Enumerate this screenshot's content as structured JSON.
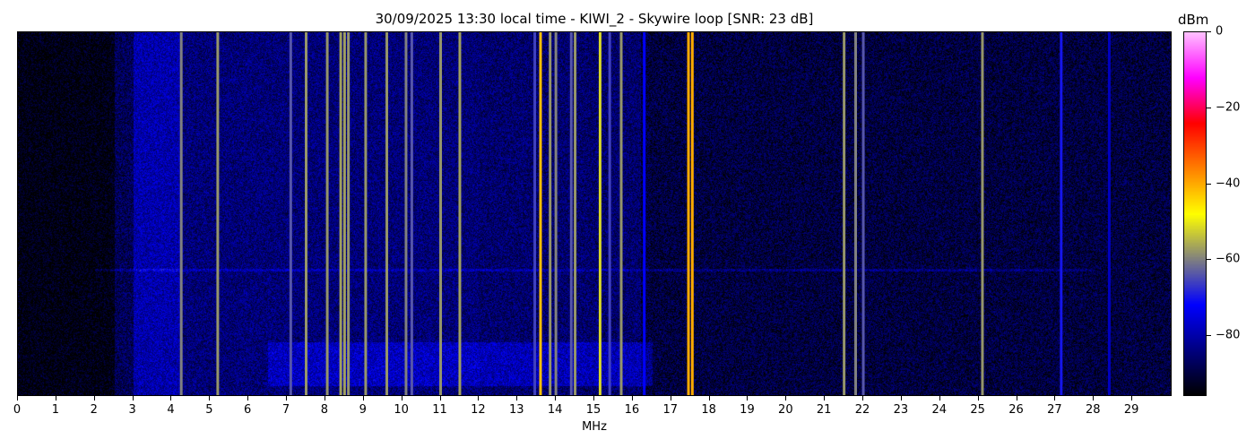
{
  "chart_data": {
    "type": "heatmap",
    "title": "30/09/2025 13:30 local time - KIWI_2 - Skywire loop [SNR: 23 dB]",
    "xlabel": "MHz",
    "xlim": [
      0,
      30
    ],
    "xticks": [
      "0",
      "1",
      "2",
      "3",
      "4",
      "5",
      "6",
      "7",
      "8",
      "9",
      "10",
      "11",
      "12",
      "13",
      "14",
      "15",
      "16",
      "17",
      "18",
      "19",
      "20",
      "21",
      "22",
      "23",
      "24",
      "25",
      "26",
      "27",
      "28",
      "29"
    ],
    "colorbar": {
      "label": "dBm",
      "range": [
        -96,
        0
      ],
      "ticks": [
        0,
        -20,
        -40,
        -60,
        -80
      ],
      "tick_labels": [
        "0",
        "−20",
        "−40",
        "−60",
        "−80"
      ],
      "colormap": [
        "#000000",
        "#000080",
        "#0000ff",
        "#808080",
        "#ffff00",
        "#ff8000",
        "#ff0000",
        "#ff00ff",
        "#ffc0ff"
      ]
    },
    "noise_floor": [
      {
        "from": 0,
        "to": 2.5,
        "dbm": -95
      },
      {
        "from": 2.5,
        "to": 3.0,
        "dbm": -88
      },
      {
        "from": 3.0,
        "to": 4.2,
        "dbm": -80
      },
      {
        "from": 4.2,
        "to": 12.0,
        "dbm": -85
      },
      {
        "from": 12.0,
        "to": 16.2,
        "dbm": -86
      },
      {
        "from": 16.2,
        "to": 30,
        "dbm": -90
      }
    ],
    "signals": [
      {
        "mhz": 4.25,
        "dbm": -60
      },
      {
        "mhz": 5.2,
        "dbm": -58
      },
      {
        "mhz": 7.1,
        "dbm": -64
      },
      {
        "mhz": 7.5,
        "dbm": -58
      },
      {
        "mhz": 8.05,
        "dbm": -58
      },
      {
        "mhz": 8.4,
        "dbm": -57
      },
      {
        "mhz": 8.5,
        "dbm": -57
      },
      {
        "mhz": 8.6,
        "dbm": -58
      },
      {
        "mhz": 9.05,
        "dbm": -58
      },
      {
        "mhz": 9.6,
        "dbm": -58
      },
      {
        "mhz": 10.1,
        "dbm": -60
      },
      {
        "mhz": 10.25,
        "dbm": -64
      },
      {
        "mhz": 11.0,
        "dbm": -58
      },
      {
        "mhz": 11.5,
        "dbm": -57
      },
      {
        "mhz": 13.45,
        "dbm": -66
      },
      {
        "mhz": 13.6,
        "dbm": -42
      },
      {
        "mhz": 13.85,
        "dbm": -58
      },
      {
        "mhz": 14.0,
        "dbm": -60
      },
      {
        "mhz": 14.4,
        "dbm": -64
      },
      {
        "mhz": 14.5,
        "dbm": -58
      },
      {
        "mhz": 15.15,
        "dbm": -52
      },
      {
        "mhz": 15.4,
        "dbm": -66
      },
      {
        "mhz": 15.7,
        "dbm": -58
      },
      {
        "mhz": 16.3,
        "dbm": -72
      },
      {
        "mhz": 17.45,
        "dbm": -40
      },
      {
        "mhz": 17.55,
        "dbm": -40
      },
      {
        "mhz": 21.5,
        "dbm": -58
      },
      {
        "mhz": 21.8,
        "dbm": -60
      },
      {
        "mhz": 22.0,
        "dbm": -64
      },
      {
        "mhz": 25.1,
        "dbm": -58
      },
      {
        "mhz": 27.15,
        "dbm": -70
      },
      {
        "mhz": 28.4,
        "dbm": -78
      }
    ]
  }
}
